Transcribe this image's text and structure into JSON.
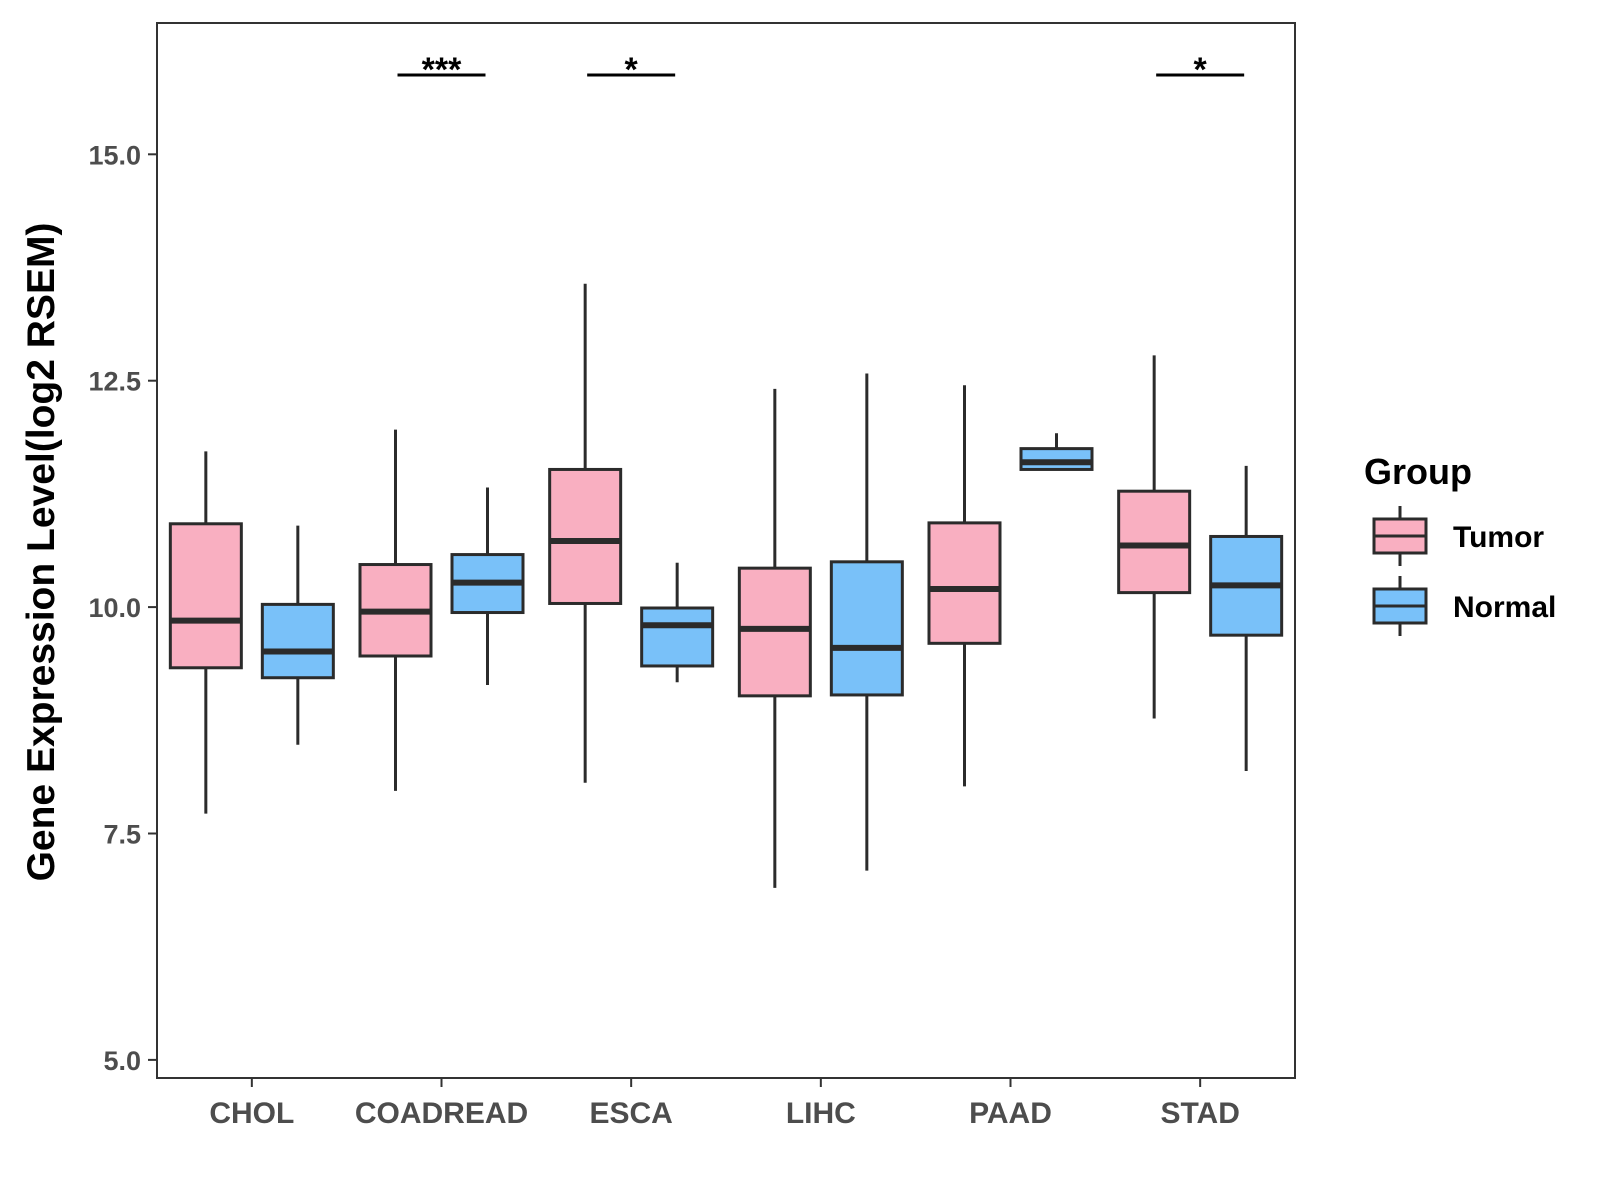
{
  "chart_data": {
    "type": "boxplot",
    "title": "",
    "xlabel": "",
    "ylabel": "Gene Expression Level(log2 RSEM)",
    "ylim": [
      4.8,
      16.45
    ],
    "yticks": [
      5.0,
      7.5,
      10.0,
      12.5,
      15.0
    ],
    "ytick_labels": [
      "5.0",
      "7.5",
      "10.0",
      "12.5",
      "15.0"
    ],
    "categories": [
      "CHOL",
      "COADREAD",
      "ESCA",
      "LIHC",
      "PAAD",
      "STAD"
    ],
    "legend": {
      "title": "Group",
      "position": "right",
      "entries": [
        {
          "name": "Tumor",
          "color": "#F9AFC1"
        },
        {
          "name": "Normal",
          "color": "#79C1F9"
        }
      ]
    },
    "series": [
      {
        "name": "Tumor",
        "color": "#F9AFC1",
        "boxes": [
          {
            "category": "CHOL",
            "min": 7.72,
            "q1": 9.33,
            "median": 9.85,
            "q3": 10.92,
            "max": 11.72
          },
          {
            "category": "COADREAD",
            "min": 7.97,
            "q1": 9.46,
            "median": 9.95,
            "q3": 10.47,
            "max": 11.96
          },
          {
            "category": "ESCA",
            "min": 8.06,
            "q1": 10.04,
            "median": 10.73,
            "q3": 11.52,
            "max": 13.57
          },
          {
            "category": "LIHC",
            "min": 6.9,
            "q1": 9.02,
            "median": 9.76,
            "q3": 10.43,
            "max": 12.41
          },
          {
            "category": "PAAD",
            "min": 8.02,
            "q1": 9.6,
            "median": 10.2,
            "q3": 10.93,
            "max": 12.45
          },
          {
            "category": "STAD",
            "min": 8.77,
            "q1": 10.16,
            "median": 10.68,
            "q3": 11.28,
            "max": 12.78
          }
        ]
      },
      {
        "name": "Normal",
        "color": "#79C1F9",
        "boxes": [
          {
            "category": "CHOL",
            "min": 8.48,
            "q1": 9.22,
            "median": 9.51,
            "q3": 10.03,
            "max": 10.9
          },
          {
            "category": "COADREAD",
            "min": 9.14,
            "q1": 9.94,
            "median": 10.27,
            "q3": 10.58,
            "max": 11.32
          },
          {
            "category": "ESCA",
            "min": 9.17,
            "q1": 9.35,
            "median": 9.8,
            "q3": 9.99,
            "max": 10.49
          },
          {
            "category": "LIHC",
            "min": 7.09,
            "q1": 9.03,
            "median": 9.55,
            "q3": 10.5,
            "max": 12.58
          },
          {
            "category": "PAAD",
            "min": 11.52,
            "q1": 11.52,
            "median": 11.6,
            "q3": 11.75,
            "max": 11.92
          },
          {
            "category": "STAD",
            "min": 8.19,
            "q1": 9.69,
            "median": 10.24,
            "q3": 10.78,
            "max": 11.56
          }
        ]
      }
    ],
    "significance": [
      {
        "category": "COADREAD",
        "label": "***"
      },
      {
        "category": "ESCA",
        "label": "*"
      },
      {
        "category": "STAD",
        "label": "*"
      }
    ]
  }
}
